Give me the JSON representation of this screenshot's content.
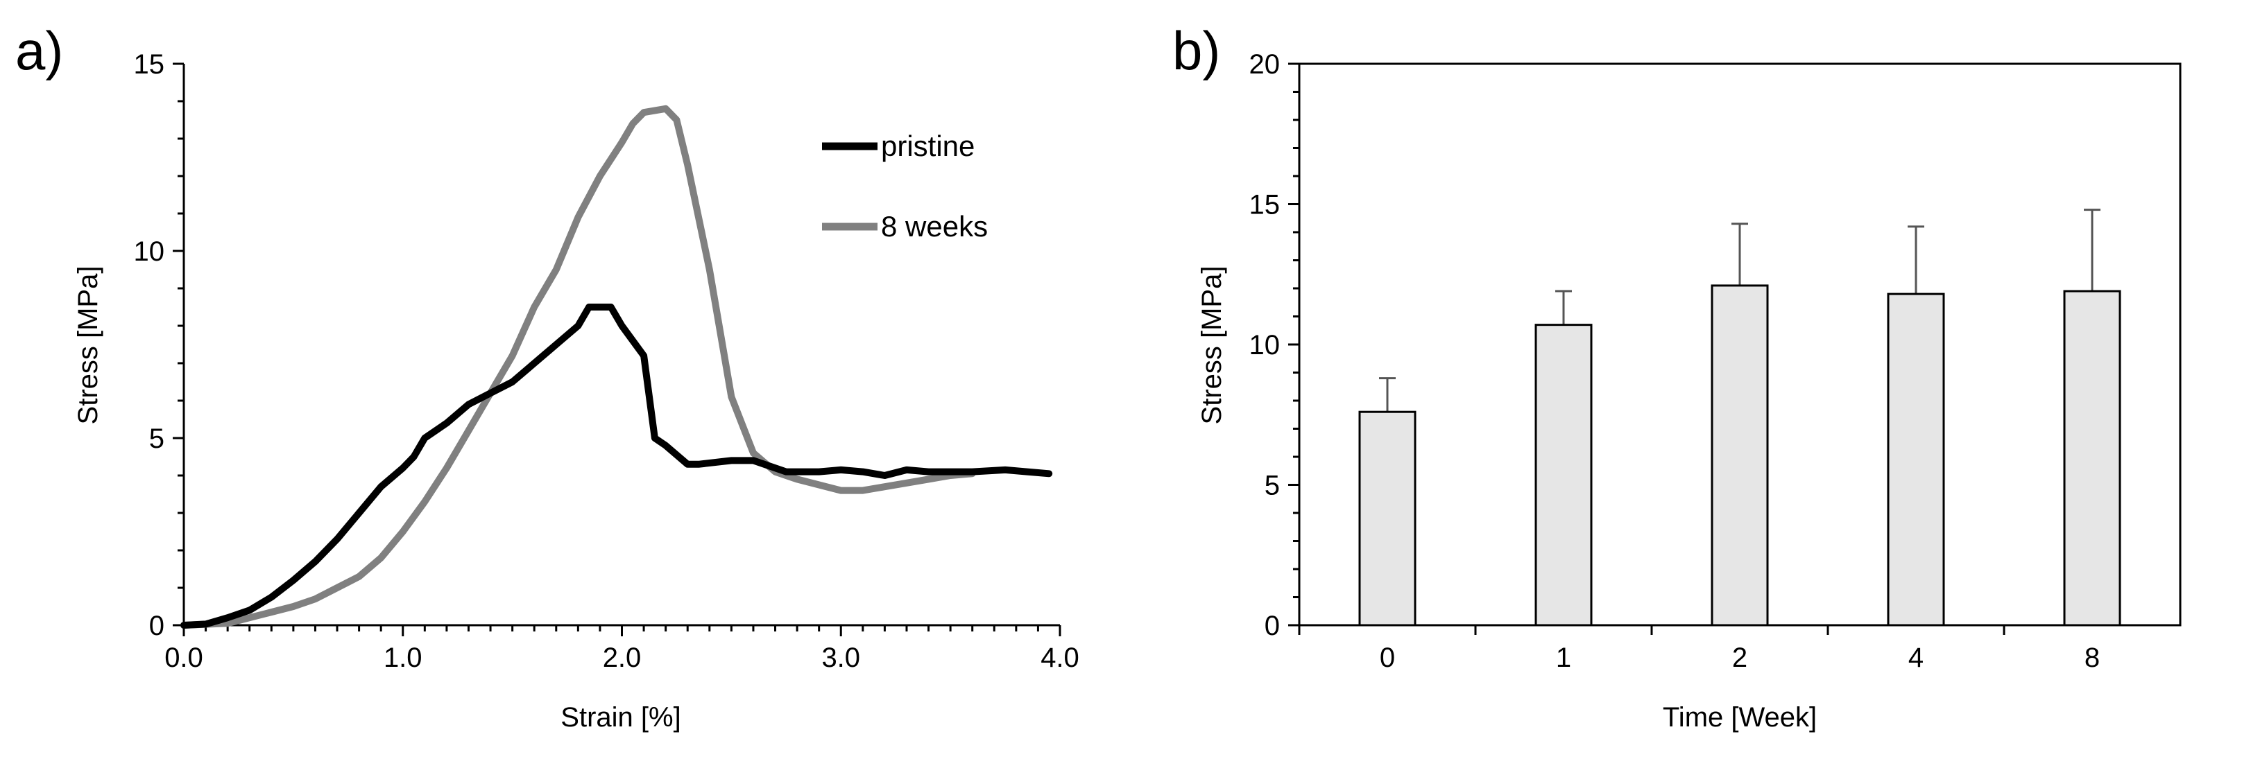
{
  "chart_data": [
    {
      "panel_label": "a)",
      "type": "line",
      "xlabel": "Strain [%]",
      "ylabel": "Stress [MPa]",
      "xlim": [
        0,
        4
      ],
      "ylim": [
        0,
        15
      ],
      "xticks": [
        "0.0",
        "1.0",
        "2.0",
        "3.0",
        "4.0"
      ],
      "yticks": [
        "0",
        "5",
        "10",
        "15"
      ],
      "legend_position": "top-right",
      "series": [
        {
          "name": "pristine",
          "color": "#000000",
          "points": [
            [
              0,
              0
            ],
            [
              0.1,
              0.03
            ],
            [
              0.2,
              0.2
            ],
            [
              0.3,
              0.4
            ],
            [
              0.4,
              0.75
            ],
            [
              0.5,
              1.2
            ],
            [
              0.6,
              1.7
            ],
            [
              0.7,
              2.3
            ],
            [
              0.8,
              3.0
            ],
            [
              0.9,
              3.7
            ],
            [
              1.0,
              4.2
            ],
            [
              1.05,
              4.5
            ],
            [
              1.1,
              5.0
            ],
            [
              1.2,
              5.4
            ],
            [
              1.3,
              5.9
            ],
            [
              1.4,
              6.2
            ],
            [
              1.5,
              6.5
            ],
            [
              1.6,
              7.0
            ],
            [
              1.7,
              7.5
            ],
            [
              1.8,
              8.0
            ],
            [
              1.85,
              8.5
            ],
            [
              1.95,
              8.5
            ],
            [
              2.0,
              8.0
            ],
            [
              2.1,
              7.2
            ],
            [
              2.15,
              5.0
            ],
            [
              2.2,
              4.8
            ],
            [
              2.3,
              4.3
            ],
            [
              2.35,
              4.3
            ],
            [
              2.5,
              4.4
            ],
            [
              2.6,
              4.4
            ],
            [
              2.75,
              4.1
            ],
            [
              2.9,
              4.1
            ],
            [
              3.0,
              4.15
            ],
            [
              3.1,
              4.1
            ],
            [
              3.2,
              4.0
            ],
            [
              3.3,
              4.15
            ],
            [
              3.4,
              4.1
            ],
            [
              3.5,
              4.1
            ],
            [
              3.6,
              4.1
            ],
            [
              3.75,
              4.15
            ],
            [
              3.85,
              4.1
            ],
            [
              3.95,
              4.05
            ]
          ]
        },
        {
          "name": "8 weeks",
          "color": "#808080",
          "points": [
            [
              0,
              0
            ],
            [
              0.2,
              0.05
            ],
            [
              0.3,
              0.2
            ],
            [
              0.4,
              0.35
            ],
            [
              0.5,
              0.5
            ],
            [
              0.6,
              0.7
            ],
            [
              0.7,
              1.0
            ],
            [
              0.8,
              1.3
            ],
            [
              0.9,
              1.8
            ],
            [
              1.0,
              2.5
            ],
            [
              1.1,
              3.3
            ],
            [
              1.2,
              4.2
            ],
            [
              1.3,
              5.2
            ],
            [
              1.4,
              6.2
            ],
            [
              1.5,
              7.2
            ],
            [
              1.6,
              8.5
            ],
            [
              1.7,
              9.5
            ],
            [
              1.8,
              10.9
            ],
            [
              1.9,
              12.0
            ],
            [
              2.0,
              12.9
            ],
            [
              2.05,
              13.4
            ],
            [
              2.1,
              13.7
            ],
            [
              2.2,
              13.8
            ],
            [
              2.25,
              13.5
            ],
            [
              2.3,
              12.3
            ],
            [
              2.4,
              9.5
            ],
            [
              2.5,
              6.1
            ],
            [
              2.6,
              4.6
            ],
            [
              2.7,
              4.1
            ],
            [
              2.8,
              3.9
            ],
            [
              2.9,
              3.75
            ],
            [
              3.0,
              3.6
            ],
            [
              3.1,
              3.6
            ],
            [
              3.2,
              3.7
            ],
            [
              3.3,
              3.8
            ],
            [
              3.4,
              3.9
            ],
            [
              3.5,
              4.0
            ],
            [
              3.6,
              4.05
            ]
          ]
        }
      ]
    },
    {
      "panel_label": "b)",
      "type": "bar",
      "xlabel": "Time [Week]",
      "ylabel": "Stress [MPa]",
      "ylim": [
        0,
        20
      ],
      "yticks": [
        "0",
        "5",
        "10",
        "15",
        "20"
      ],
      "categories": [
        "0",
        "1",
        "2",
        "4",
        "8"
      ],
      "values": [
        7.6,
        10.7,
        12.1,
        11.8,
        11.9
      ],
      "errors": [
        1.2,
        1.2,
        2.2,
        2.4,
        2.9
      ],
      "bar_color": "#e6e6e6"
    }
  ]
}
